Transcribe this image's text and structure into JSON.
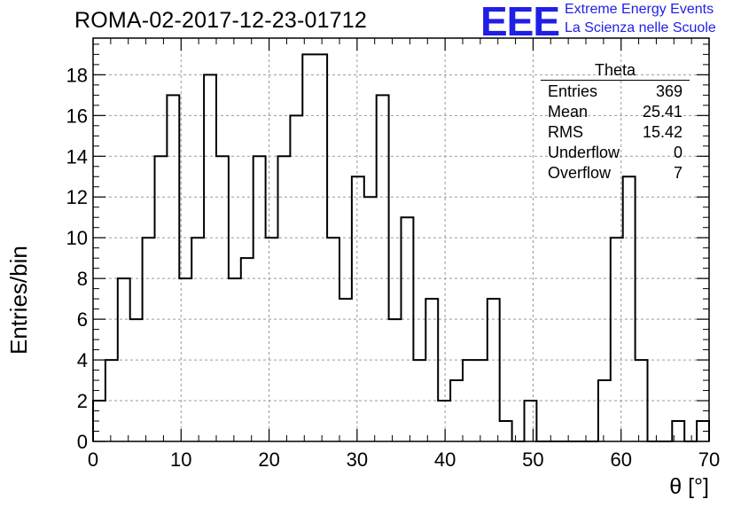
{
  "header": {
    "run_title": "ROMA-02-2017-12-23-01712",
    "logo_text": "EEE",
    "logo_line1": "Extreme Energy Events",
    "logo_line2": "La Scienza nelle Scuole",
    "logo_color": "#1f1fe6"
  },
  "stats": {
    "title": "Theta",
    "rows": [
      {
        "label": "Entries",
        "value": "369"
      },
      {
        "label": "Mean",
        "value": "25.41"
      },
      {
        "label": "RMS",
        "value": "15.42"
      },
      {
        "label": "Underflow",
        "value": "0"
      },
      {
        "label": "Overflow",
        "value": "7"
      }
    ]
  },
  "chart_data": {
    "type": "histogram",
    "title": "ROMA-02-2017-12-23-01712",
    "xlabel": "θ [°]",
    "ylabel": "Entries/bin",
    "xlim": [
      0,
      70
    ],
    "ylim": [
      0,
      19.8
    ],
    "bin_width": 1.4,
    "bin_low_edge": 0,
    "grid": true,
    "x_ticks": [
      0,
      10,
      20,
      30,
      40,
      50,
      60,
      70
    ],
    "y_ticks": [
      0,
      2,
      4,
      6,
      8,
      10,
      12,
      14,
      16,
      18
    ],
    "values": [
      2,
      4,
      8,
      6,
      10,
      14,
      17,
      8,
      10,
      18,
      14,
      8,
      9,
      14,
      10,
      14,
      16,
      19,
      19,
      10,
      7,
      13,
      12,
      17,
      6,
      11,
      4,
      7,
      2,
      3,
      4,
      4,
      7,
      1,
      0,
      2,
      0,
      0,
      0,
      0,
      0,
      3,
      10,
      13,
      4,
      0,
      0,
      1,
      0,
      1
    ]
  }
}
